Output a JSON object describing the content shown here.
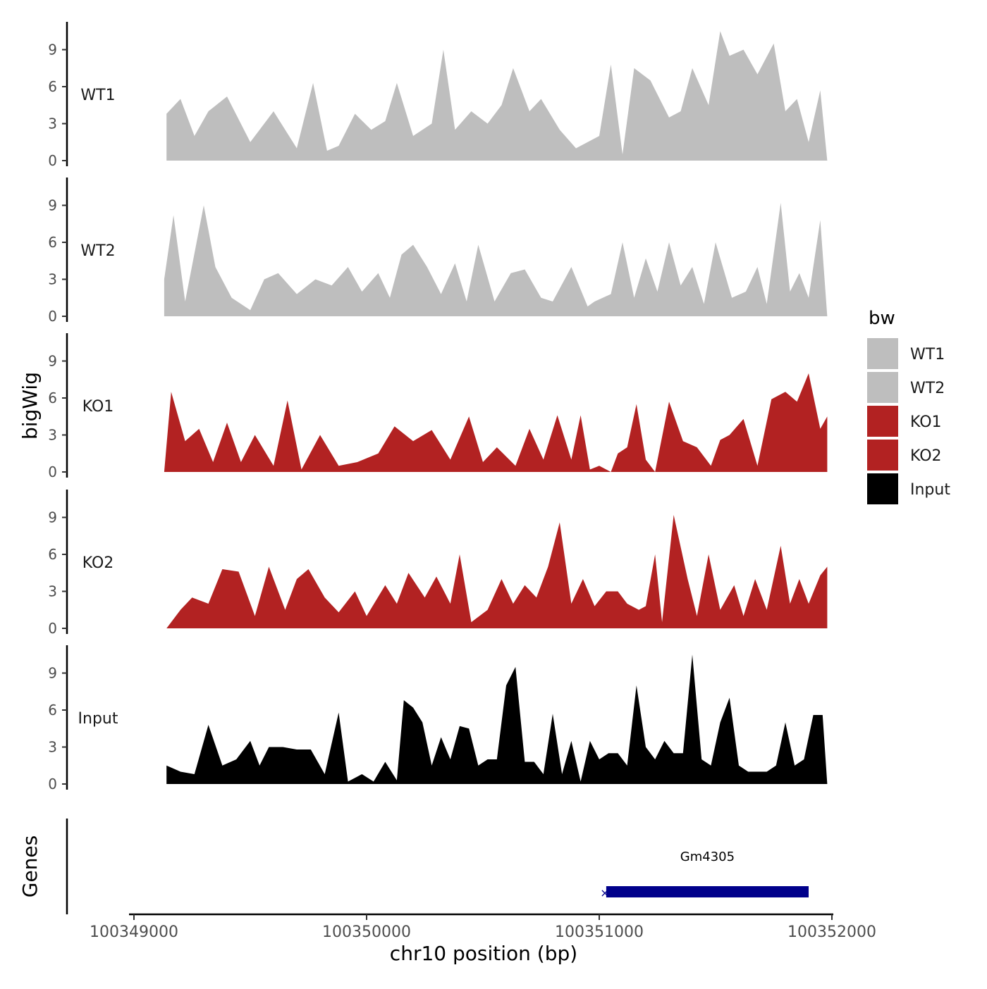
{
  "chart_data": {
    "type": "area",
    "title": "",
    "ylabel": "bigWig",
    "xlabel": "chr10 position (bp)",
    "xlim": [
      100349000,
      100352000
    ],
    "x_ticks": [
      100349000,
      100350000,
      100351000,
      100352000
    ],
    "x_tick_labels": [
      "100349000",
      "100350000",
      "100351000",
      "100352000"
    ],
    "ylim": [
      0,
      11
    ],
    "y_ticks": [
      0,
      3,
      6,
      9
    ],
    "y_tick_labels": [
      "0",
      "3",
      "6",
      "9"
    ],
    "legend": {
      "title": "bw",
      "position": "right",
      "entries": [
        {
          "name": "WT1",
          "color": "#bebebe"
        },
        {
          "name": "WT2",
          "color": "#bebebe"
        },
        {
          "name": "KO1",
          "color": "#b22222"
        },
        {
          "name": "KO2",
          "color": "#b22222"
        },
        {
          "name": "Input",
          "color": "#000000"
        }
      ]
    },
    "series": [
      {
        "name": "WT1",
        "label": "WT1",
        "color": "#bebebe",
        "x": [
          100349140,
          100349200,
          100349260,
          100349320,
          100349400,
          100349500,
          100349600,
          100349700,
          100349770,
          100349830,
          100349880,
          100349950,
          100350020,
          100350080,
          100350130,
          100350200,
          100350280,
          100350330,
          100350380,
          100350450,
          100350520,
          100350580,
          100350630,
          100350700,
          100350750,
          100350830,
          100350900,
          100351000,
          100351050,
          100351100,
          100351150,
          100351220,
          100351300,
          100351350,
          100351400,
          100351470,
          100351520,
          100351560,
          100351620,
          100351680,
          100351750,
          100351800,
          100351850,
          100351900,
          100351950,
          100351980
        ],
        "values": [
          3.8,
          5.0,
          2.0,
          4.0,
          5.2,
          1.5,
          4.0,
          1.0,
          6.3,
          0.8,
          1.2,
          3.8,
          2.5,
          3.2,
          6.3,
          2.0,
          3.0,
          9.0,
          2.5,
          4.0,
          3.0,
          4.5,
          7.5,
          4.0,
          5.0,
          2.5,
          1.0,
          2.0,
          7.8,
          0.5,
          7.5,
          6.5,
          3.5,
          4.0,
          7.5,
          4.5,
          10.5,
          8.5,
          9.0,
          7.0,
          9.5,
          4.0,
          5.0,
          1.5,
          5.7,
          0
        ]
      },
      {
        "name": "WT2",
        "label": "WT2",
        "color": "#bebebe",
        "x": [
          100349130,
          100349170,
          100349220,
          100349300,
          100349350,
          100349420,
          100349500,
          100349560,
          100349620,
          100349700,
          100349780,
          100349850,
          100349920,
          100349980,
          100350050,
          100350100,
          100350150,
          100350200,
          100350260,
          100350320,
          100350380,
          100350430,
          100350480,
          100350550,
          100350620,
          100350680,
          100350750,
          100350800,
          100350880,
          100350950,
          100350980,
          100351050,
          100351100,
          100351150,
          100351200,
          100351250,
          100351300,
          100351350,
          100351400,
          100351450,
          100351500,
          100351570,
          100351630,
          100351680,
          100351720,
          100351780,
          100351820,
          100351860,
          100351900,
          100351950,
          100351980
        ],
        "values": [
          3.0,
          8.2,
          1.2,
          9.0,
          4.0,
          1.5,
          0.5,
          3.0,
          3.5,
          1.8,
          3.0,
          2.5,
          4.0,
          2.0,
          3.5,
          1.5,
          5.0,
          5.8,
          4.0,
          1.8,
          4.3,
          1.2,
          5.8,
          1.2,
          3.5,
          3.8,
          1.5,
          1.2,
          4.0,
          0.8,
          1.2,
          1.8,
          6.0,
          1.5,
          4.7,
          2.0,
          6.0,
          2.5,
          4.0,
          1.0,
          6.0,
          1.5,
          2.0,
          4.0,
          1.0,
          9.2,
          2.0,
          3.5,
          1.5,
          7.8,
          0
        ]
      },
      {
        "name": "KO1",
        "label": "KO1",
        "color": "#b22222",
        "x": [
          100349130,
          100349160,
          100349220,
          100349280,
          100349340,
          100349400,
          100349460,
          100349520,
          100349600,
          100349660,
          100349720,
          100349800,
          100349880,
          100349960,
          100350050,
          100350120,
          100350200,
          100350280,
          100350360,
          100350440,
          100350500,
          100350560,
          100350640,
          100350700,
          100350760,
          100350820,
          100350880,
          100350920,
          100350960,
          100351000,
          100351050,
          100351080,
          100351120,
          100351160,
          100351200,
          100351240,
          100351300,
          100351360,
          100351420,
          100351480,
          100351520,
          100351560,
          100351620,
          100351680,
          100351740,
          100351800,
          100351850,
          100351900,
          100351950,
          100351980
        ],
        "values": [
          0,
          6.5,
          2.5,
          3.5,
          0.8,
          4.0,
          0.8,
          3.0,
          0.5,
          5.8,
          0.2,
          3.0,
          0.5,
          0.8,
          1.5,
          3.7,
          2.5,
          3.4,
          1.0,
          4.5,
          0.8,
          2.0,
          0.5,
          3.5,
          1.0,
          4.6,
          1.0,
          4.6,
          0.2,
          0.5,
          0.0,
          1.5,
          2.0,
          5.5,
          1.0,
          0.0,
          5.7,
          2.5,
          2.0,
          0.5,
          2.6,
          3.0,
          4.3,
          0.5,
          5.9,
          6.5,
          5.7,
          8.0,
          3.5,
          4.5
        ]
      },
      {
        "name": "KO2",
        "label": "KO2",
        "color": "#b22222",
        "x": [
          100349140,
          100349200,
          100349250,
          100349320,
          100349380,
          100349450,
          100349520,
          100349580,
          100349650,
          100349700,
          100349750,
          100349820,
          100349880,
          100349950,
          100350000,
          100350080,
          100350130,
          100350180,
          100350250,
          100350300,
          100350360,
          100350400,
          100350450,
          100350520,
          100350580,
          100350630,
          100350680,
          100350730,
          100350780,
          100350830,
          100350880,
          100350930,
          100350980,
          100351030,
          100351080,
          100351120,
          100351170,
          100351200,
          100351240,
          100351270,
          100351320,
          100351380,
          100351420,
          100351470,
          100351520,
          100351580,
          100351620,
          100351670,
          100351720,
          100351780,
          100351820,
          100351860,
          100351900,
          100351950,
          100351980
        ],
        "values": [
          0,
          1.5,
          2.5,
          2.0,
          4.8,
          4.6,
          1.0,
          5.0,
          1.5,
          4.0,
          4.8,
          2.5,
          1.3,
          3.0,
          1.0,
          3.5,
          2.0,
          4.5,
          2.5,
          4.2,
          2.0,
          6.0,
          0.5,
          1.5,
          4.0,
          2.0,
          3.5,
          2.5,
          5.0,
          8.6,
          2.0,
          4.0,
          1.8,
          3.0,
          3.0,
          2.0,
          1.5,
          1.8,
          6.0,
          0.5,
          9.2,
          4.0,
          1.0,
          6.0,
          1.5,
          3.5,
          1.0,
          4.0,
          1.5,
          6.7,
          2.0,
          4.0,
          2.0,
          4.3,
          5.0
        ]
      },
      {
        "name": "Input",
        "label": "Input",
        "color": "#000000",
        "x": [
          100349140,
          100349200,
          100349260,
          100349320,
          100349380,
          100349440,
          100349500,
          100349540,
          100349580,
          100349640,
          100349700,
          100349760,
          100349820,
          100349880,
          100349920,
          100349980,
          100350030,
          100350080,
          100350130,
          100350160,
          100350200,
          100350240,
          100350280,
          100350320,
          100350360,
          100350400,
          100350440,
          100350480,
          100350520,
          100350560,
          100350600,
          100350640,
          100350680,
          100350720,
          100350760,
          100350800,
          100350840,
          100350880,
          100350920,
          100350960,
          100351000,
          100351040,
          100351080,
          100351120,
          100351160,
          100351200,
          100351240,
          100351280,
          100351320,
          100351360,
          100351400,
          100351440,
          100351480,
          100351520,
          100351560,
          100351600,
          100351640,
          100351680,
          100351720,
          100351760,
          100351800,
          100351840,
          100351880,
          100351920,
          100351960,
          100351980
        ],
        "values": [
          1.5,
          1.0,
          0.8,
          4.8,
          1.5,
          2.0,
          3.5,
          1.5,
          3.0,
          3.0,
          2.8,
          2.8,
          0.8,
          5.8,
          0.2,
          0.8,
          0.2,
          1.8,
          0.3,
          6.8,
          6.2,
          5.0,
          1.5,
          3.8,
          2.0,
          4.7,
          4.5,
          1.5,
          2.0,
          2.0,
          8.0,
          9.5,
          1.8,
          1.8,
          0.8,
          5.7,
          0.8,
          3.5,
          0.2,
          3.5,
          2.0,
          2.5,
          2.5,
          1.5,
          8.0,
          3.0,
          2.0,
          3.5,
          2.5,
          2.5,
          10.5,
          2.0,
          1.5,
          5.0,
          7.0,
          1.5,
          1.0,
          1.0,
          1.0,
          1.5,
          5.0,
          1.5,
          2.0,
          5.6,
          5.6,
          0
        ]
      }
    ],
    "genes_track": {
      "ylabel": "Genes",
      "genes": [
        {
          "name": "Gm4305",
          "start": 100351030,
          "end": 100351900,
          "strand": "-",
          "color": "#00008b"
        }
      ]
    }
  }
}
